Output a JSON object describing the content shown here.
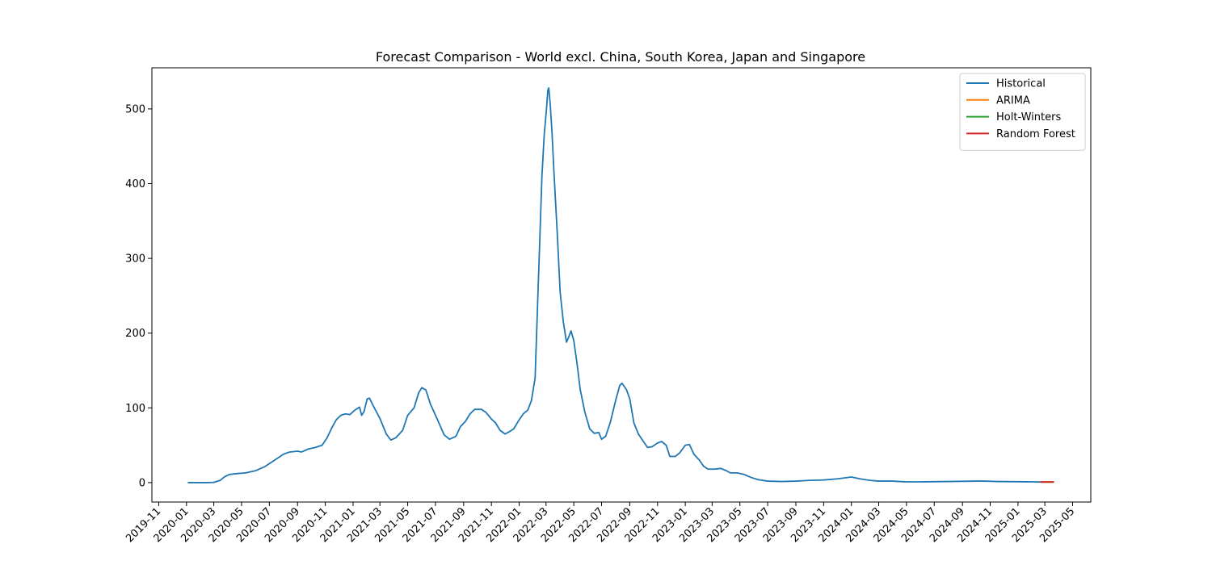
{
  "chart_data": {
    "type": "line",
    "title": "Forecast Comparison - World excl. China, South Korea, Japan and Singapore",
    "xlabel": "",
    "ylabel": "",
    "grid": false,
    "legend_position": "top-right",
    "x_range": [
      "2019-10-17",
      "2025-06-10"
    ],
    "ylim": [
      -26,
      555
    ],
    "x_ticks": [
      "2019-11",
      "2020-01",
      "2020-03",
      "2020-05",
      "2020-07",
      "2020-09",
      "2020-11",
      "2021-01",
      "2021-03",
      "2021-05",
      "2021-07",
      "2021-09",
      "2021-11",
      "2022-01",
      "2022-03",
      "2022-05",
      "2022-07",
      "2022-09",
      "2022-11",
      "2023-01",
      "2023-03",
      "2023-05",
      "2023-07",
      "2023-09",
      "2023-11",
      "2024-01",
      "2024-03",
      "2024-05",
      "2024-07",
      "2024-09",
      "2024-11",
      "2025-01",
      "2025-03",
      "2025-05"
    ],
    "y_ticks": [
      0,
      100,
      200,
      300,
      400,
      500
    ],
    "series": [
      {
        "name": "Historical",
        "color": "#1f77b4",
        "points": [
          [
            "2020-01-05",
            0
          ],
          [
            "2020-02-15",
            0
          ],
          [
            "2020-03-01",
            0.3
          ],
          [
            "2020-03-15",
            3
          ],
          [
            "2020-03-25",
            8
          ],
          [
            "2020-04-05",
            11
          ],
          [
            "2020-04-20",
            12
          ],
          [
            "2020-05-10",
            13
          ],
          [
            "2020-06-01",
            16
          ],
          [
            "2020-06-20",
            21
          ],
          [
            "2020-07-10",
            29
          ],
          [
            "2020-08-01",
            38
          ],
          [
            "2020-08-15",
            41
          ],
          [
            "2020-09-01",
            42
          ],
          [
            "2020-09-10",
            41
          ],
          [
            "2020-09-25",
            45
          ],
          [
            "2020-10-10",
            47
          ],
          [
            "2020-10-25",
            50
          ],
          [
            "2020-11-05",
            60
          ],
          [
            "2020-11-15",
            73
          ],
          [
            "2020-11-25",
            84
          ],
          [
            "2020-12-05",
            90
          ],
          [
            "2020-12-15",
            92
          ],
          [
            "2020-12-25",
            91
          ],
          [
            "2021-01-05",
            97
          ],
          [
            "2021-01-15",
            101
          ],
          [
            "2021-01-20",
            90
          ],
          [
            "2021-01-25",
            95
          ],
          [
            "2021-02-01",
            112
          ],
          [
            "2021-02-06",
            113
          ],
          [
            "2021-02-15",
            102
          ],
          [
            "2021-03-01",
            86
          ],
          [
            "2021-03-15",
            65
          ],
          [
            "2021-03-25",
            57
          ],
          [
            "2021-04-05",
            60
          ],
          [
            "2021-04-20",
            70
          ],
          [
            "2021-05-01",
            90
          ],
          [
            "2021-05-15",
            100
          ],
          [
            "2021-05-25",
            120
          ],
          [
            "2021-06-01",
            127
          ],
          [
            "2021-06-10",
            124
          ],
          [
            "2021-06-20",
            105
          ],
          [
            "2021-07-05",
            85
          ],
          [
            "2021-07-20",
            64
          ],
          [
            "2021-08-01",
            58
          ],
          [
            "2021-08-15",
            62
          ],
          [
            "2021-08-25",
            75
          ],
          [
            "2021-09-05",
            82
          ],
          [
            "2021-09-15",
            92
          ],
          [
            "2021-09-25",
            98
          ],
          [
            "2021-10-10",
            98
          ],
          [
            "2021-10-20",
            94
          ],
          [
            "2021-11-01",
            85
          ],
          [
            "2021-11-10",
            80
          ],
          [
            "2021-11-20",
            70
          ],
          [
            "2021-12-01",
            65
          ],
          [
            "2021-12-10",
            68
          ],
          [
            "2021-12-20",
            72
          ],
          [
            "2022-01-01",
            84
          ],
          [
            "2022-01-10",
            92
          ],
          [
            "2022-01-20",
            97
          ],
          [
            "2022-01-28",
            110
          ],
          [
            "2022-02-05",
            140
          ],
          [
            "2022-02-10",
            230
          ],
          [
            "2022-02-15",
            320
          ],
          [
            "2022-02-20",
            410
          ],
          [
            "2022-02-25",
            465
          ],
          [
            "2022-03-02",
            500
          ],
          [
            "2022-03-05",
            525
          ],
          [
            "2022-03-07",
            528
          ],
          [
            "2022-03-10",
            508
          ],
          [
            "2022-03-14",
            470
          ],
          [
            "2022-03-18",
            420
          ],
          [
            "2022-03-22",
            375
          ],
          [
            "2022-03-26",
            330
          ],
          [
            "2022-04-01",
            255
          ],
          [
            "2022-04-08",
            215
          ],
          [
            "2022-04-15",
            188
          ],
          [
            "2022-04-20",
            195
          ],
          [
            "2022-04-25",
            203
          ],
          [
            "2022-05-01",
            190
          ],
          [
            "2022-05-08",
            160
          ],
          [
            "2022-05-15",
            125
          ],
          [
            "2022-05-25",
            95
          ],
          [
            "2022-06-05",
            72
          ],
          [
            "2022-06-15",
            66
          ],
          [
            "2022-06-25",
            67
          ],
          [
            "2022-07-01",
            58
          ],
          [
            "2022-07-10",
            62
          ],
          [
            "2022-07-20",
            80
          ],
          [
            "2022-08-01",
            110
          ],
          [
            "2022-08-10",
            130
          ],
          [
            "2022-08-15",
            133
          ],
          [
            "2022-08-25",
            124
          ],
          [
            "2022-09-01",
            112
          ],
          [
            "2022-09-10",
            80
          ],
          [
            "2022-09-20",
            65
          ],
          [
            "2022-10-01",
            55
          ],
          [
            "2022-10-10",
            47
          ],
          [
            "2022-10-20",
            48
          ],
          [
            "2022-11-01",
            53
          ],
          [
            "2022-11-10",
            55
          ],
          [
            "2022-11-20",
            50
          ],
          [
            "2022-11-28",
            35
          ],
          [
            "2022-12-10",
            35
          ],
          [
            "2022-12-20",
            40
          ],
          [
            "2023-01-01",
            50
          ],
          [
            "2023-01-10",
            51
          ],
          [
            "2023-01-20",
            38
          ],
          [
            "2023-02-01",
            30
          ],
          [
            "2023-02-10",
            22
          ],
          [
            "2023-02-20",
            18
          ],
          [
            "2023-03-05",
            18
          ],
          [
            "2023-03-20",
            19
          ],
          [
            "2023-04-01",
            16
          ],
          [
            "2023-04-10",
            13
          ],
          [
            "2023-04-25",
            13
          ],
          [
            "2023-05-10",
            11
          ],
          [
            "2023-05-25",
            7
          ],
          [
            "2023-06-10",
            4
          ],
          [
            "2023-07-01",
            2
          ],
          [
            "2023-08-01",
            1.5
          ],
          [
            "2023-09-01",
            2
          ],
          [
            "2023-10-01",
            3
          ],
          [
            "2023-11-01",
            3.5
          ],
          [
            "2023-12-01",
            5
          ],
          [
            "2024-01-01",
            7.5
          ],
          [
            "2024-01-20",
            5
          ],
          [
            "2024-02-10",
            3
          ],
          [
            "2024-03-01",
            2
          ],
          [
            "2024-04-01",
            2
          ],
          [
            "2024-04-15",
            1.5
          ],
          [
            "2024-05-01",
            1
          ],
          [
            "2024-06-01",
            1
          ],
          [
            "2024-08-01",
            1.5
          ],
          [
            "2024-10-01",
            2
          ],
          [
            "2024-10-20",
            2
          ],
          [
            "2024-11-15",
            1.5
          ],
          [
            "2025-01-01",
            1.2
          ],
          [
            "2025-02-01",
            1
          ],
          [
            "2025-02-20",
            0.8
          ]
        ]
      },
      {
        "name": "ARIMA",
        "color": "#ff7f0e",
        "points": [
          [
            "2025-02-20",
            0.8
          ],
          [
            "2025-03-20",
            0.8
          ]
        ]
      },
      {
        "name": "Holt-Winters",
        "color": "#2ca02c",
        "points": [
          [
            "2025-02-20",
            0.8
          ],
          [
            "2025-03-20",
            0.8
          ]
        ]
      },
      {
        "name": "Random Forest",
        "color": "#d62728",
        "points": [
          [
            "2025-02-20",
            0.8
          ],
          [
            "2025-03-20",
            0.8
          ]
        ]
      }
    ]
  }
}
